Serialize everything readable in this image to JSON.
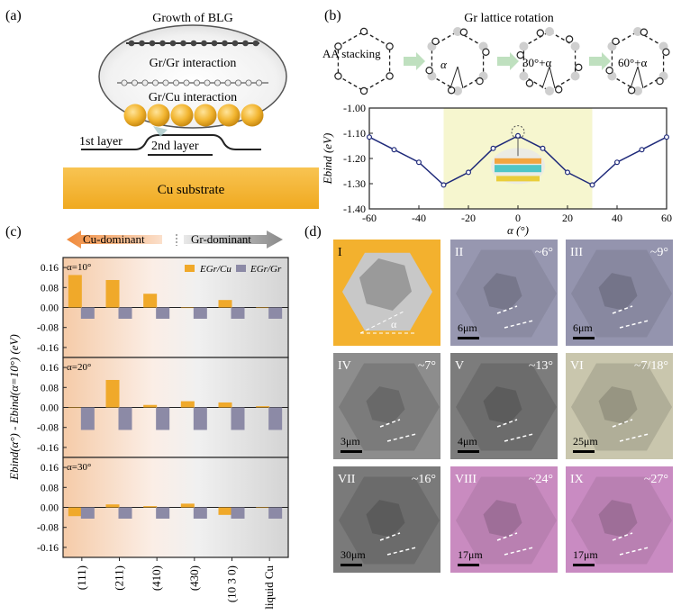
{
  "panel_labels": [
    "(a)",
    "(b)",
    "(c)",
    "(d)"
  ],
  "panel_a": {
    "title": "Growth of BLG",
    "gr_gr": "Gr/Gr interaction",
    "gr_cu": "Gr/Cu interaction",
    "layer1": "1st layer",
    "layer2": "2nd layer",
    "substrate": "Cu substrate",
    "colors": {
      "cu": "#f2b530",
      "substrate": "#f6b93b"
    }
  },
  "panel_b": {
    "title": "Gr lattice rotation",
    "steps": [
      "AA stacking",
      "α",
      "30°+α",
      "60°+α"
    ]
  },
  "panel_c": {
    "direction_left": "Cu-dominant",
    "direction_right": "Gr-dominant",
    "colors": {
      "gr_cu": "#f0a92a",
      "gr_gr": "#8c8aa6"
    }
  },
  "panel_d": {
    "tiles": [
      {
        "id": "I",
        "angle": "",
        "scale": "",
        "alpha": "α",
        "bg": "#f3b12e"
      },
      {
        "id": "II",
        "angle": "~6°",
        "scale": "6μm",
        "bg": "#9797b0"
      },
      {
        "id": "III",
        "angle": "~9°",
        "scale": "6μm",
        "bg": "#9494ae"
      },
      {
        "id": "IV",
        "angle": "~7°",
        "scale": "3μm",
        "bg": "#8d8d8d"
      },
      {
        "id": "V",
        "angle": "~13°",
        "scale": "4μm",
        "bg": "#7c7c7c"
      },
      {
        "id": "VI",
        "angle": "~7/18°",
        "scale": "25μm",
        "bg": "#c9c6ad"
      },
      {
        "id": "VII",
        "angle": "~16°",
        "scale": "30μm",
        "bg": "#7a7a7a"
      },
      {
        "id": "VIII",
        "angle": "~24°",
        "scale": "17μm",
        "bg": "#c98bc0"
      },
      {
        "id": "IX",
        "angle": "~27°",
        "scale": "17μm",
        "bg": "#c98bc2"
      }
    ]
  },
  "chart_data": [
    {
      "type": "line",
      "panel": "b",
      "x": [
        -60,
        -50,
        -40,
        -30,
        -20,
        -10,
        0,
        10,
        20,
        30,
        40,
        50,
        60
      ],
      "y": [
        -1.115,
        -1.165,
        -1.215,
        -1.305,
        -1.255,
        -1.16,
        -1.11,
        -1.16,
        -1.255,
        -1.305,
        -1.215,
        -1.165,
        -1.115
      ],
      "xlabel": "α (°)",
      "ylabel": "Ebind (eV)",
      "xlim": [
        -60,
        60
      ],
      "ylim": [
        -1.4,
        -1.0
      ],
      "xticks": [
        -60,
        -40,
        -20,
        0,
        20,
        40,
        60
      ],
      "yticks": [
        -1.0,
        -1.1,
        -1.2,
        -1.3,
        -1.4
      ],
      "highlight_range": [
        -30,
        30
      ],
      "line_color": "#1f2a7a"
    },
    {
      "type": "bar",
      "panel": "c",
      "ylabel": "Ebind(α°) - Ebind(α=10°) (eV)",
      "categories": [
        "(111)",
        "(211)",
        "(410)",
        "(430)",
        "(10 3 0)",
        "liquid Cu"
      ],
      "legend": [
        "EGr/Cu",
        "EGr/Gr"
      ],
      "ylim": [
        -0.2,
        0.2
      ],
      "yticks": [
        0.16,
        0.08,
        0.0,
        -0.08,
        -0.16
      ],
      "subplots": [
        {
          "label": "α=10°",
          "series": [
            {
              "name": "EGr/Cu",
              "values": [
                0.13,
                0.11,
                0.055,
                0.0,
                0.03,
                0.0
              ]
            },
            {
              "name": "EGr/Gr",
              "values": [
                -0.045,
                -0.045,
                -0.045,
                -0.045,
                -0.045,
                -0.045
              ]
            }
          ]
        },
        {
          "label": "α=20°",
          "series": [
            {
              "name": "EGr/Cu",
              "values": [
                0.0,
                0.11,
                0.01,
                0.025,
                0.02,
                0.005
              ]
            },
            {
              "name": "EGr/Gr",
              "values": [
                -0.09,
                -0.09,
                -0.09,
                -0.09,
                -0.09,
                -0.09
              ]
            }
          ]
        },
        {
          "label": "α=30°",
          "series": [
            {
              "name": "EGr/Cu",
              "values": [
                -0.035,
                0.012,
                0.005,
                0.015,
                -0.03,
                0.0
              ]
            },
            {
              "name": "EGr/Gr",
              "values": [
                -0.045,
                -0.045,
                -0.045,
                -0.045,
                -0.045,
                -0.045
              ]
            }
          ]
        }
      ]
    }
  ]
}
